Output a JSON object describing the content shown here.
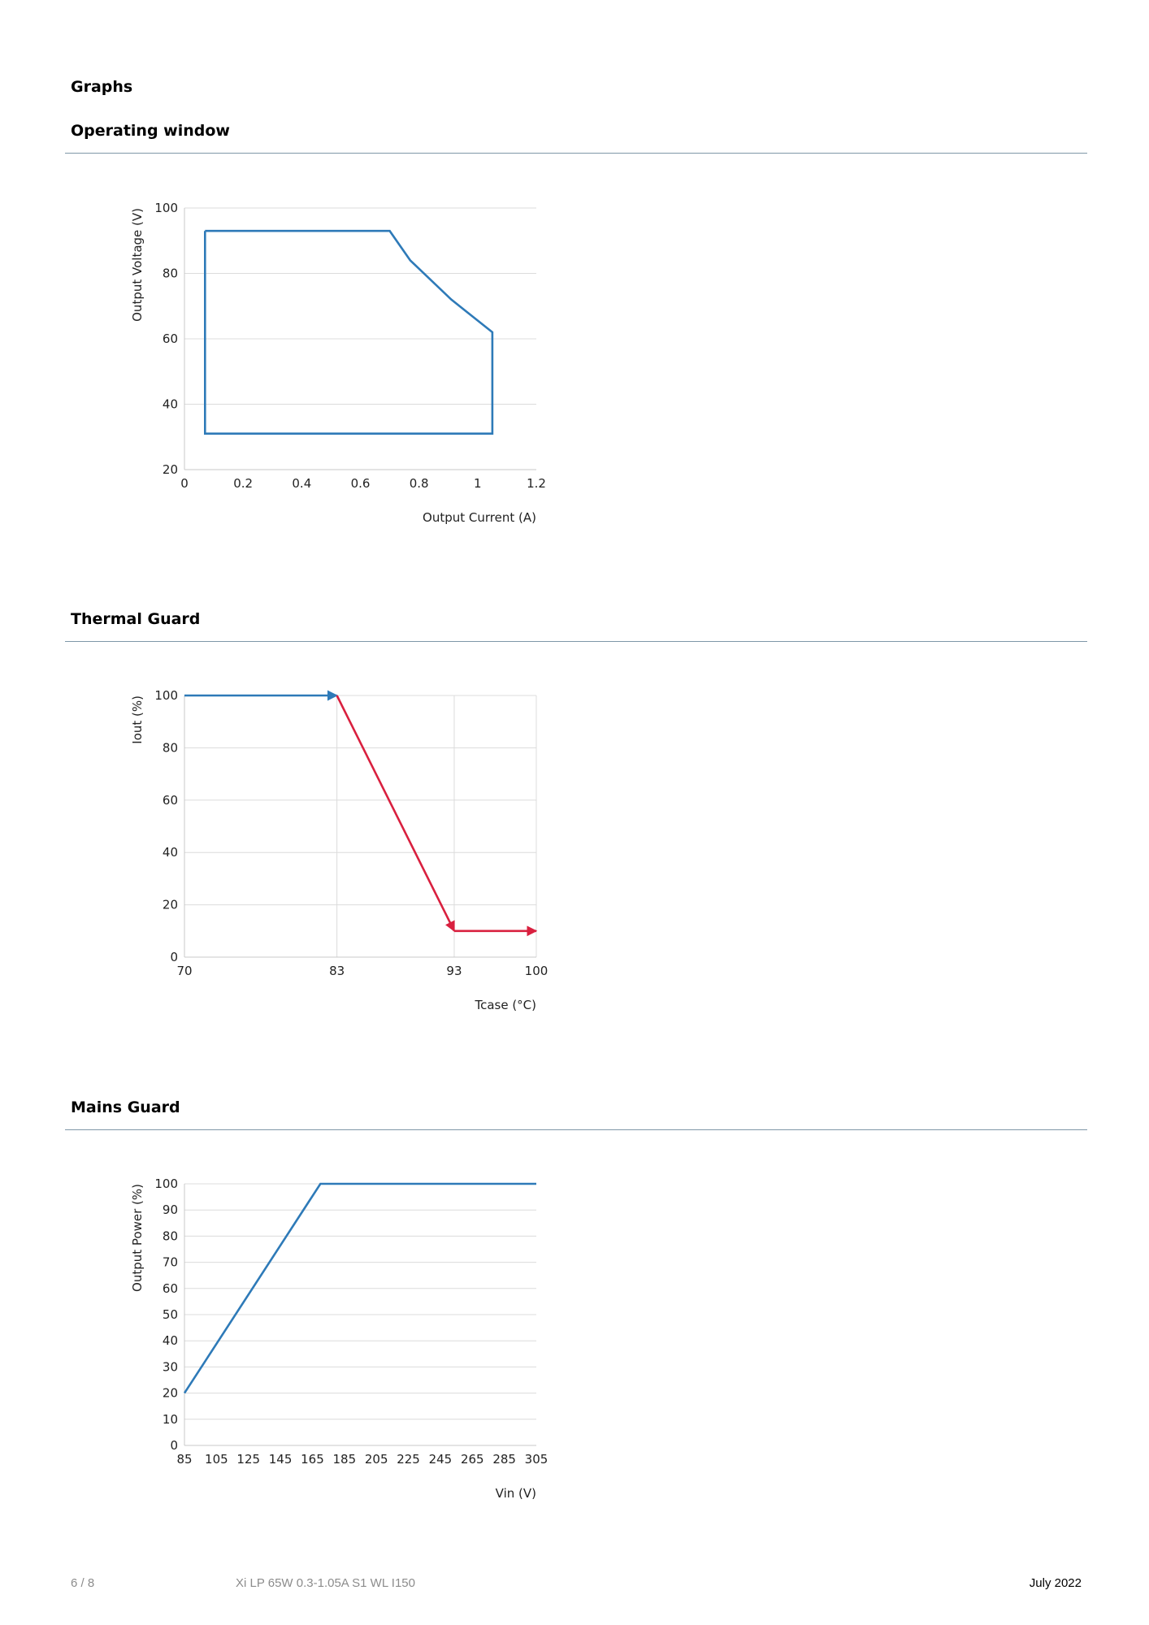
{
  "page": {
    "section_title": "Graphs",
    "footer": {
      "page": "6 / 8",
      "product": "Xi LP 65W 0.3-1.05A S1 WL I150",
      "date": "July 2022"
    }
  },
  "chart_data": [
    {
      "type": "line",
      "heading": "Operating window",
      "xlabel": "Output Current (A)",
      "ylabel": "Output Voltage (V)",
      "xlim": [
        0,
        1.2
      ],
      "ylim": [
        20,
        100
      ],
      "xticks": [
        "0",
        "0.2",
        "0.4",
        "0.6",
        "0.8",
        "1",
        "1.2"
      ],
      "yticks": [
        "20",
        "40",
        "60",
        "80",
        "100"
      ],
      "grid": "horizontal",
      "series": [
        {
          "color": "#2e7ab8",
          "x": [
            0.07,
            0.7,
            0.77,
            0.91,
            1.05,
            1.05,
            0.07,
            0.07
          ],
          "y": [
            93,
            93,
            84,
            72,
            62,
            31,
            31,
            93
          ]
        }
      ]
    },
    {
      "type": "line",
      "heading": "Thermal Guard",
      "xlabel": "Tcase (°C)",
      "ylabel": "Iout (%)",
      "xlim": [
        70,
        100
      ],
      "ylim": [
        0,
        100
      ],
      "xticks": [
        "70",
        "83",
        "93",
        "100"
      ],
      "yticks": [
        "0",
        "20",
        "40",
        "60",
        "80",
        "100"
      ],
      "grid": "both",
      "series": [
        {
          "color": "#2e7ab8",
          "x": [
            70,
            83
          ],
          "y": [
            100,
            100
          ],
          "arrow": true
        },
        {
          "color": "#d9203f",
          "x": [
            83,
            93
          ],
          "y": [
            100,
            10
          ],
          "arrow": true
        },
        {
          "color": "#d9203f",
          "x": [
            93,
            100
          ],
          "y": [
            10,
            10
          ],
          "arrow": true
        }
      ]
    },
    {
      "type": "line",
      "heading": "Mains Guard",
      "xlabel": "Vin (V)",
      "ylabel": "Output Power (%)",
      "xlim": [
        85,
        305
      ],
      "ylim": [
        0,
        100
      ],
      "xticks": [
        "85",
        "105",
        "125",
        "145",
        "165",
        "185",
        "205",
        "225",
        "245",
        "265",
        "285",
        "305"
      ],
      "yticks": [
        "0",
        "10",
        "20",
        "30",
        "40",
        "50",
        "60",
        "70",
        "80",
        "90",
        "100"
      ],
      "grid": "horizontal",
      "series": [
        {
          "color": "#2e7ab8",
          "x": [
            85,
            170,
            305
          ],
          "y": [
            20,
            100,
            100
          ]
        }
      ]
    }
  ]
}
